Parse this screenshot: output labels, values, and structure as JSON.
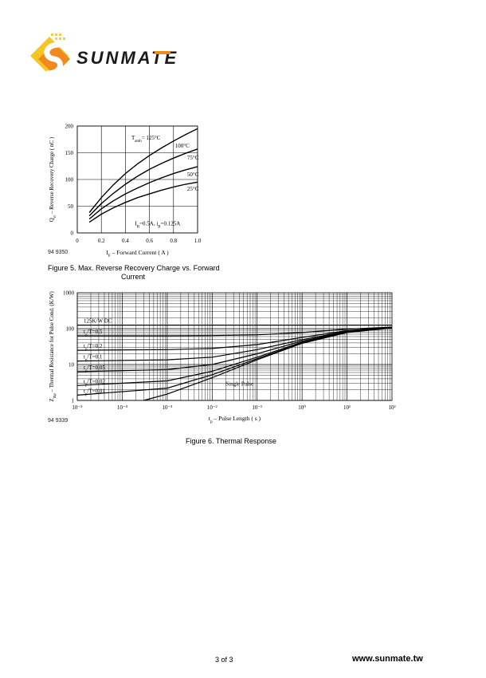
{
  "brand": {
    "name": "SUNMATE",
    "colors": {
      "orange": "#f08a1c",
      "yellow": "#f5c623",
      "dark": "#1b1b1b"
    }
  },
  "footer": {
    "page": "3  of 3",
    "url": "www.sunmate.tw"
  },
  "chart_data": [
    {
      "type": "line",
      "id": "94 9350",
      "caption_line1": "Figure 5.  Max. Reverse Recovery Charge vs. Forward",
      "caption_line2": "Current",
      "ylabel_main": "Q",
      "ylabel_sub": "rr",
      "ylabel_rest": " – Reverse Recovery Charge ( nC )",
      "xlabel_main": "I",
      "xlabel_sub": "F",
      "xlabel_rest": " – Forward Current ( A )",
      "xlim": [
        0,
        1.0
      ],
      "ylim": [
        0,
        200
      ],
      "xticks": [
        "0",
        "0.2",
        "0.4",
        "0.6",
        "0.8",
        "1.0"
      ],
      "yticks": [
        "0",
        "50",
        "100",
        "150",
        "200"
      ],
      "grid": true,
      "annotation_tamb_main": "T",
      "annotation_tamb_sub": "amb",
      "annotation_tamb_rest": "= 125°C",
      "annotation_cond": {
        "a": "I",
        "a_sub": "R",
        "b": "=0.5A, i",
        "b_sub": "R",
        "c": "=0.125A"
      },
      "series": [
        {
          "name": "100°C",
          "x": [
            0.1,
            0.2,
            0.3,
            0.4,
            0.5,
            0.6,
            0.7,
            0.8,
            0.9,
            1.0
          ],
          "values": [
            38,
            66,
            90,
            111,
            129,
            145,
            159,
            172,
            184,
            195
          ]
        },
        {
          "name": "75°C",
          "x": [
            0.1,
            0.2,
            0.3,
            0.4,
            0.5,
            0.6,
            0.7,
            0.8,
            0.9,
            1.0
          ],
          "values": [
            32,
            55,
            74,
            91,
            106,
            119,
            130,
            140,
            149,
            157
          ]
        },
        {
          "name": "50°C",
          "x": [
            0.1,
            0.2,
            0.3,
            0.4,
            0.5,
            0.6,
            0.7,
            0.8,
            0.9,
            1.0
          ],
          "values": [
            26,
            45,
            60,
            73,
            84,
            94,
            103,
            111,
            118,
            124
          ]
        },
        {
          "name": "25°C",
          "x": [
            0.1,
            0.2,
            0.3,
            0.4,
            0.5,
            0.6,
            0.7,
            0.8,
            0.9,
            1.0
          ],
          "values": [
            20,
            35,
            47,
            57,
            66,
            73,
            80,
            86,
            91,
            95
          ]
        }
      ]
    },
    {
      "type": "line",
      "id": "94 9339",
      "caption": "Figure 6.  Thermal Response",
      "ylabel_main": "Z",
      "ylabel_sub": "thp",
      "ylabel_rest": " – Thermal Resistance for Pulse Cond. (K/W)",
      "xlabel_main": "t",
      "xlabel_sub": "p",
      "xlabel_rest": " – Pulse Length ( s )",
      "xscale": "log",
      "yscale": "log",
      "xlim": [
        1e-05,
        100
      ],
      "ylim": [
        1,
        1000
      ],
      "xticks": [
        "10⁻⁵",
        "10⁻⁴",
        "10⁻³",
        "10⁻²",
        "10⁻¹",
        "10⁰",
        "10¹",
        "10²"
      ],
      "yticks": [
        "1",
        "10",
        "100",
        "1000"
      ],
      "grid": true,
      "series_labels": [
        {
          "main": "125K/W DC",
          "sub": "",
          "rest": ""
        },
        {
          "main": "t",
          "sub": "p",
          "rest": "/T=0.5"
        },
        {
          "main": "t",
          "sub": "p",
          "rest": "/T=0.2"
        },
        {
          "main": "t",
          "sub": "p",
          "rest": "/T=0.1"
        },
        {
          "main": "t",
          "sub": "p",
          "rest": "/T=0.05"
        },
        {
          "main": "t",
          "sub": "p",
          "rest": "/T=0.02"
        },
        {
          "main": "t",
          "sub": "p",
          "rest": "/T=0.01"
        },
        {
          "main": "Single Pulse",
          "sub": "",
          "rest": ""
        }
      ],
      "series": [
        {
          "x": [
            1e-05,
            0.001,
            0.01,
            0.1,
            1,
            10,
            100
          ],
          "values": [
            125,
            125,
            125,
            125,
            125,
            125,
            125
          ]
        },
        {
          "x": [
            1e-05,
            0.001,
            0.01,
            0.1,
            1,
            10,
            100
          ],
          "values": [
            63,
            63,
            64,
            67,
            78,
            97,
            110
          ]
        },
        {
          "x": [
            1e-05,
            0.001,
            0.01,
            0.1,
            1,
            10,
            100
          ],
          "values": [
            25,
            26,
            28,
            36,
            57,
            88,
            108
          ]
        },
        {
          "x": [
            1e-05,
            0.001,
            0.01,
            0.1,
            1,
            10,
            100
          ],
          "values": [
            12.5,
            13.5,
            16,
            26,
            49,
            84,
            107
          ]
        },
        {
          "x": [
            1e-05,
            0.001,
            0.01,
            0.1,
            1,
            10,
            100
          ],
          "values": [
            6.3,
            7.2,
            10,
            20,
            45,
            82,
            106
          ]
        },
        {
          "x": [
            1e-05,
            0.001,
            0.01,
            0.1,
            1,
            10,
            100
          ],
          "values": [
            2.6,
            3.5,
            6.5,
            16,
            42,
            80,
            105
          ]
        },
        {
          "x": [
            1e-05,
            0.001,
            0.01,
            0.1,
            1,
            10,
            100
          ],
          "values": [
            1.4,
            2.2,
            5.2,
            14.5,
            40,
            79,
            105
          ]
        },
        {
          "x": [
            0.0003,
            0.001,
            0.01,
            0.1,
            1,
            10,
            100
          ],
          "values": [
            1,
            1.5,
            4.3,
            13.5,
            39,
            78,
            104
          ]
        }
      ]
    }
  ]
}
